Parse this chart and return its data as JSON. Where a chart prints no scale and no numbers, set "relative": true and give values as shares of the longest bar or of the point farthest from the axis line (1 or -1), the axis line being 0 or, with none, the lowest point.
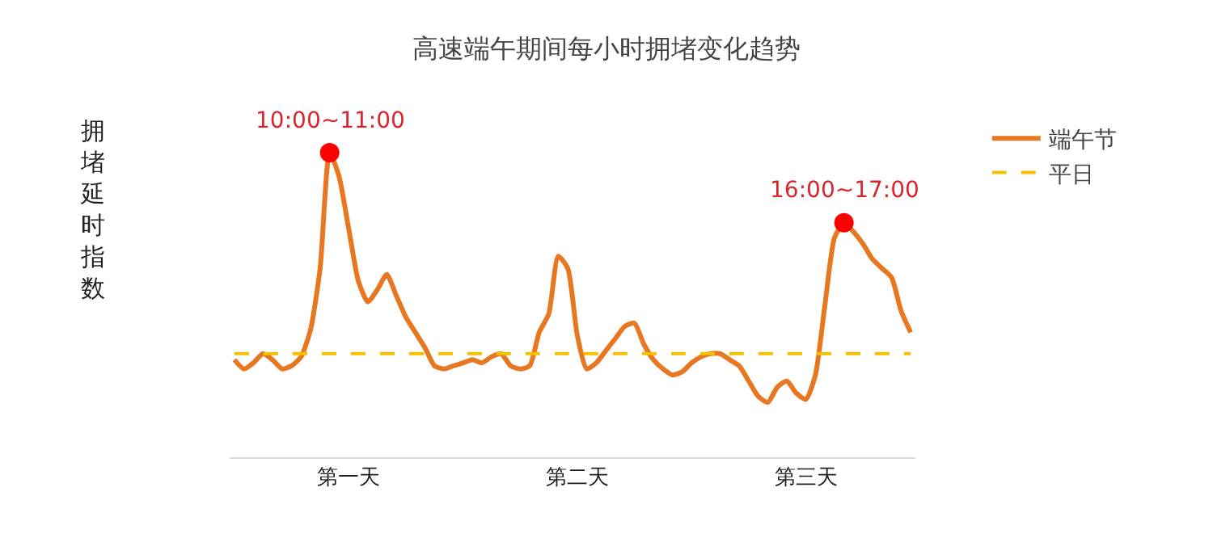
{
  "chart_data": {
    "type": "line",
    "title": "高速端午期间每小时拥堵变化趋势",
    "relative": true,
    "legend": "right",
    "marker": "none",
    "categories": [
      null,
      null,
      null,
      null,
      null,
      null,
      null,
      null,
      null,
      null,
      null,
      null,
      "第一天",
      null,
      null,
      null,
      null,
      null,
      null,
      null,
      null,
      null,
      null,
      null,
      null,
      null,
      null,
      null,
      null,
      null,
      null,
      null,
      null,
      null,
      null,
      null,
      "第二天",
      null,
      null,
      null,
      null,
      null,
      null,
      null,
      null,
      null,
      null,
      null,
      null,
      null,
      null,
      null,
      null,
      null,
      null,
      null,
      null,
      null,
      null,
      null,
      "第三天",
      null,
      null,
      null,
      null,
      null,
      null,
      null,
      null,
      null,
      null,
      null
    ],
    "series": [
      {
        "name": "端午节",
        "color": "#e87722",
        "line_style": "solid",
        "values": [
          0.32,
          0.29,
          0.31,
          0.34,
          0.32,
          0.29,
          0.3,
          0.33,
          0.42,
          0.62,
          1,
          0.92,
          0.75,
          0.58,
          0.51,
          0.55,
          0.6,
          0.53,
          0.46,
          0.41,
          0.36,
          0.3,
          0.29,
          0.3,
          0.31,
          0.32,
          0.31,
          0.33,
          0.34,
          0.3,
          0.29,
          0.3,
          0.41,
          0.47,
          0.66,
          0.62,
          0.4,
          0.29,
          0.31,
          0.35,
          0.39,
          0.43,
          0.44,
          0.37,
          0.32,
          0.29,
          0.27,
          0.28,
          0.31,
          0.33,
          0.34,
          0.34,
          0.32,
          0.3,
          0.25,
          0.2,
          0.18,
          0.23,
          0.25,
          0.21,
          0.19,
          0.27,
          0.5,
          0.72,
          0.77,
          0.74,
          0.7,
          0.65,
          0.62,
          0.59,
          0.48,
          0.41
        ]
      },
      {
        "name": "平日",
        "color": "#f5c000",
        "line_style": "dashed",
        "values": [
          0.34,
          0.34,
          0.34,
          0.34,
          0.34,
          0.34,
          0.34,
          0.34,
          0.34,
          0.34,
          0.34,
          0.34,
          0.34,
          0.34,
          0.34,
          0.34,
          0.34,
          0.34,
          0.34,
          0.34,
          0.34,
          0.34,
          0.34,
          0.34,
          0.34,
          0.34,
          0.34,
          0.34,
          0.34,
          0.34,
          0.34,
          0.34,
          0.34,
          0.34,
          0.34,
          0.34,
          0.34,
          0.34,
          0.34,
          0.34,
          0.34,
          0.34,
          0.34,
          0.34,
          0.34,
          0.34,
          0.34,
          0.34,
          0.34,
          0.34,
          0.34,
          0.34,
          0.34,
          0.34,
          0.34,
          0.34,
          0.34,
          0.34,
          0.34,
          0.34,
          0.34,
          0.34,
          0.34,
          0.34,
          0.34,
          0.34,
          0.34,
          0.34,
          0.34,
          0.34,
          0.34,
          0.34
        ]
      },
      {
        "type": "scatter",
        "color": "#ff0000",
        "marker": "circle",
        "values": [
          null,
          null,
          null,
          null,
          null,
          null,
          null,
          null,
          null,
          null,
          1,
          null,
          null,
          null,
          null,
          null,
          null,
          null,
          null,
          null,
          null,
          null,
          null,
          null,
          null,
          null,
          null,
          null,
          null,
          null,
          null,
          null,
          null,
          null,
          null,
          null,
          null,
          null,
          null,
          null,
          null,
          null,
          null,
          null,
          null,
          null,
          null,
          null,
          null,
          null,
          null,
          null,
          null,
          null,
          null,
          null,
          null,
          null,
          null,
          null,
          null,
          null,
          null,
          null,
          0.77,
          null,
          null,
          null,
          null,
          null,
          null,
          null
        ]
      }
    ],
    "annotations": [
      "10:00~11:00",
      "16:00~17:00",
      "拥堵延时指数"
    ]
  }
}
